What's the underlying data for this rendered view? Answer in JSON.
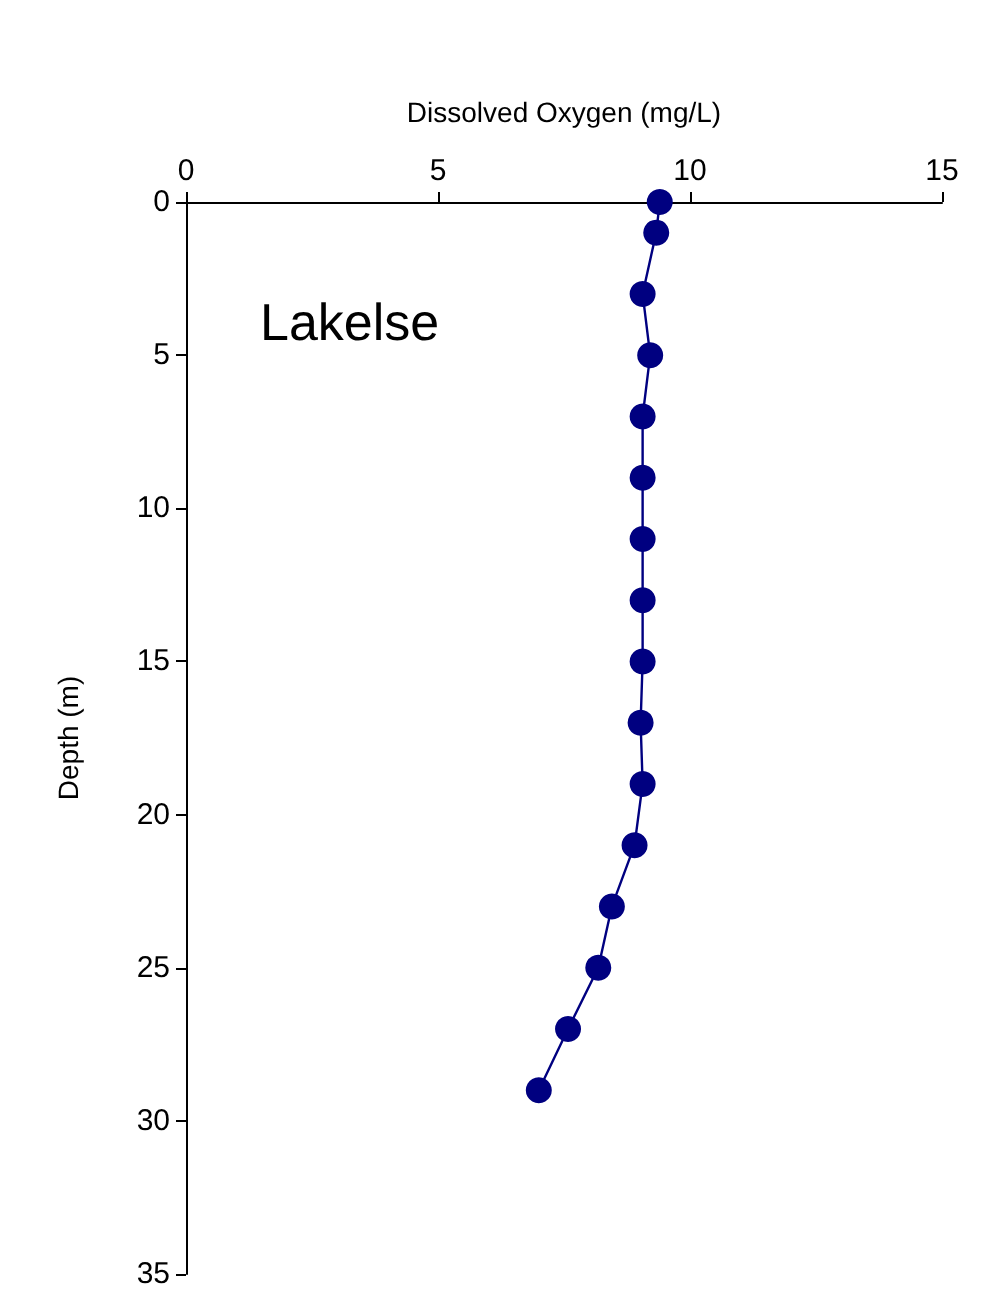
{
  "chart_data": {
    "type": "line",
    "xlabel": "Dissolved Oxygen (mg/L)",
    "ylabel": "Depth (m)",
    "annotations": [
      "Lakelse"
    ],
    "xlim": [
      0,
      15
    ],
    "xticks": [
      0,
      5,
      10,
      15
    ],
    "ylim": [
      35,
      0
    ],
    "yticks": [
      0,
      5,
      10,
      15,
      20,
      25,
      30,
      35
    ],
    "grid": false,
    "marker": "circle",
    "line_style": "solid",
    "series": [
      {
        "color": "#000080",
        "x": [
          9.4,
          9.33,
          9.06,
          9.21,
          9.06,
          9.06,
          9.06,
          9.06,
          9.06,
          9.02,
          9.06,
          8.9,
          8.45,
          8.18,
          7.58,
          7.0
        ],
        "values": [
          0,
          1,
          3,
          5,
          7,
          9,
          11,
          13,
          15,
          17,
          19,
          21,
          23,
          25,
          27,
          29
        ]
      }
    ]
  }
}
